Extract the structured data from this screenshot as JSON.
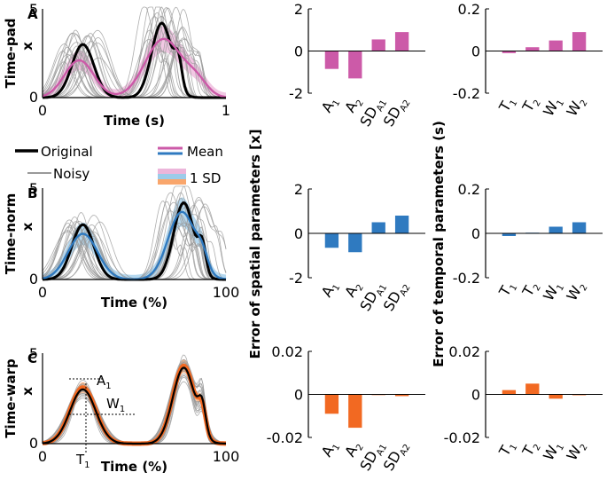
{
  "colors": {
    "pad": "#cc5aa8",
    "pad_sd": "#ecb5da",
    "norm": "#2f7ac0",
    "norm_sd": "#9ccbe9",
    "warp": "#f26922",
    "warp_sd": "#f9a66c",
    "original": "#000000",
    "noisy": "#9a9a9a"
  },
  "legend": {
    "original": "Original",
    "mean": "Mean",
    "noisy": "Noisy",
    "sd": "1 SD"
  },
  "annotations": {
    "a1": "A",
    "a1_sub": "1",
    "w1": "W",
    "w1_sub": "1",
    "t1": "T",
    "t1_sub": "1"
  },
  "chart_data": [
    {
      "id": "A",
      "type": "line",
      "panel_label": "A",
      "ylabel": "Time-pad",
      "y_var": "x",
      "xlabel": "Time (s)",
      "xlim": [
        0,
        1
      ],
      "ylim": [
        0,
        5
      ],
      "x_tick_labels": [
        "0",
        "1"
      ],
      "y_tick_labels": [
        "0",
        "5"
      ],
      "series": [
        {
          "name": "Original",
          "peaks": [
            {
              "t": 0.22,
              "a": 3.0,
              "w": 0.06
            },
            {
              "t": 0.65,
              "a": 4.2,
              "w": 0.055
            },
            {
              "t": 0.74,
              "a": 1.5,
              "w": 0.02
            }
          ]
        },
        {
          "name": "Mean",
          "peaks": [
            {
              "t": 0.2,
              "a": 2.1,
              "w": 0.08
            },
            {
              "t": 0.66,
              "a": 3.3,
              "w": 0.1
            },
            {
              "t": 0.84,
              "a": 0.8,
              "w": 0.06
            }
          ]
        }
      ]
    },
    {
      "id": "B",
      "type": "line",
      "panel_label": "B",
      "ylabel": "Time-norm",
      "y_var": "x",
      "xlabel": "Time (%)",
      "xlim": [
        0,
        100
      ],
      "ylim": [
        0,
        5
      ],
      "x_tick_labels": [
        "0",
        "100"
      ],
      "y_tick_labels": [
        "0",
        "5"
      ],
      "series": [
        {
          "name": "Original",
          "peaks": [
            {
              "t": 22,
              "a": 3.0,
              "w": 6
            },
            {
              "t": 77,
              "a": 4.2,
              "w": 5.5
            },
            {
              "t": 87,
              "a": 1.5,
              "w": 2
            }
          ]
        },
        {
          "name": "Mean",
          "peaks": [
            {
              "t": 22,
              "a": 2.5,
              "w": 8
            },
            {
              "t": 76,
              "a": 3.7,
              "w": 7.5
            },
            {
              "t": 87,
              "a": 0.8,
              "w": 3
            }
          ]
        }
      ]
    },
    {
      "id": "C",
      "type": "line",
      "panel_label": "C",
      "ylabel": "Time-warp",
      "y_var": "x",
      "xlabel": "Time (%)",
      "xlim": [
        0,
        100
      ],
      "ylim": [
        0,
        5
      ],
      "x_tick_labels": [
        "0",
        "100"
      ],
      "y_tick_labels": [
        "0",
        "5"
      ],
      "series": [
        {
          "name": "Original",
          "peaks": [
            {
              "t": 22,
              "a": 3.0,
              "w": 7
            },
            {
              "t": 77,
              "a": 4.2,
              "w": 6
            },
            {
              "t": 87,
              "a": 1.5,
              "w": 2
            }
          ]
        },
        {
          "name": "Mean",
          "peaks": [
            {
              "t": 22,
              "a": 3.1,
              "w": 7
            },
            {
              "t": 77,
              "a": 4.3,
              "w": 6
            },
            {
              "t": 87,
              "a": 1.3,
              "w": 2
            }
          ]
        }
      ]
    },
    {
      "id": "spatial-pad",
      "type": "bar",
      "color_key": "pad",
      "categories": [
        {
          "m": "A",
          "s": "1"
        },
        {
          "m": "A",
          "s": "2"
        },
        {
          "m": "SD",
          "s": "A1"
        },
        {
          "m": "SD",
          "s": "A2"
        }
      ],
      "values": [
        -0.85,
        -1.3,
        0.55,
        0.9
      ],
      "ylim": [
        -2,
        2
      ],
      "y_ticks": [
        2,
        0,
        -2
      ],
      "y_tick_labels": [
        "2",
        "0",
        "-2"
      ]
    },
    {
      "id": "temporal-pad",
      "type": "bar",
      "color_key": "pad",
      "categories": [
        {
          "m": "T",
          "s": "1"
        },
        {
          "m": "T",
          "s": "2"
        },
        {
          "m": "W",
          "s": "1"
        },
        {
          "m": "W",
          "s": "2"
        }
      ],
      "values": [
        -0.01,
        0.018,
        0.05,
        0.09
      ],
      "ylim": [
        -0.2,
        0.2
      ],
      "y_ticks": [
        0.2,
        0,
        -0.2
      ],
      "y_tick_labels": [
        "0.2",
        "0",
        "-0.2"
      ]
    },
    {
      "id": "spatial-norm",
      "type": "bar",
      "color_key": "norm",
      "categories": [
        {
          "m": "A",
          "s": "1"
        },
        {
          "m": "A",
          "s": "2"
        },
        {
          "m": "SD",
          "s": "A1"
        },
        {
          "m": "SD",
          "s": "A2"
        }
      ],
      "values": [
        -0.65,
        -0.85,
        0.5,
        0.8
      ],
      "ylim": [
        -2,
        2
      ],
      "y_ticks": [
        2,
        0,
        -2
      ],
      "y_tick_labels": [
        "2",
        "0",
        "-2"
      ]
    },
    {
      "id": "temporal-norm",
      "type": "bar",
      "color_key": "norm",
      "categories": [
        {
          "m": "T",
          "s": "1"
        },
        {
          "m": "T",
          "s": "2"
        },
        {
          "m": "W",
          "s": "1"
        },
        {
          "m": "W",
          "s": "2"
        }
      ],
      "values": [
        -0.012,
        0.003,
        0.03,
        0.05
      ],
      "ylim": [
        -0.2,
        0.2
      ],
      "y_ticks": [
        0.2,
        0,
        -0.2
      ],
      "y_tick_labels": [
        "0.2",
        "0",
        "-0.2"
      ]
    },
    {
      "id": "spatial-warp",
      "type": "bar",
      "color_key": "warp",
      "categories": [
        {
          "m": "A",
          "s": "1"
        },
        {
          "m": "A",
          "s": "2"
        },
        {
          "m": "SD",
          "s": "A1"
        },
        {
          "m": "SD",
          "s": "A2"
        }
      ],
      "values": [
        -0.009,
        -0.0155,
        -0.0003,
        -0.0008
      ],
      "ylim": [
        -0.02,
        0.02
      ],
      "y_ticks": [
        0.02,
        0,
        -0.02
      ],
      "y_tick_labels": [
        "0.02",
        "0",
        "-0.02"
      ]
    },
    {
      "id": "temporal-warp",
      "type": "bar",
      "color_key": "warp",
      "categories": [
        {
          "m": "T",
          "s": "1"
        },
        {
          "m": "T",
          "s": "2"
        },
        {
          "m": "W",
          "s": "1"
        },
        {
          "m": "W",
          "s": "2"
        }
      ],
      "values": [
        0.002,
        0.005,
        -0.002,
        -0.0004
      ],
      "ylim": [
        -0.02,
        0.02
      ],
      "y_ticks": [
        0.02,
        0,
        -0.02
      ],
      "y_tick_labels": [
        "0.02",
        "0",
        "-0.02"
      ]
    }
  ],
  "shared_axis_labels": {
    "spatial": "Error of spatial parameters [x]",
    "temporal": "Error of temporal parameters (s)"
  }
}
